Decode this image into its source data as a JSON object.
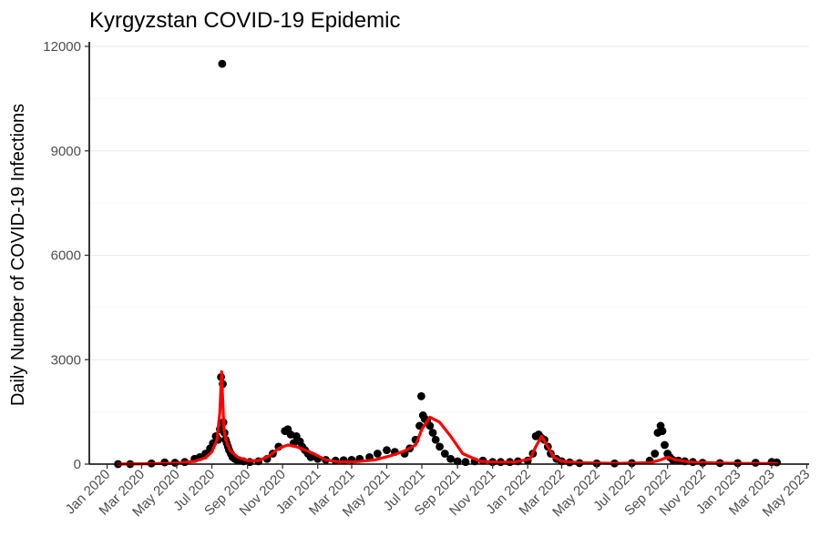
{
  "chart_data": {
    "type": "scatter",
    "title": "Kyrgyzstan COVID-19 Epidemic",
    "xlabel": "",
    "ylabel": "Daily Number of COVID-19 Infections",
    "xlim": [
      "2019-12-01",
      "2023-05-05"
    ],
    "ylim": [
      0,
      12000
    ],
    "y_ticks": [
      0,
      3000,
      6000,
      9000,
      12000
    ],
    "x_ticks": [
      {
        "date": "2020-01-01",
        "label": "Jan 2020"
      },
      {
        "date": "2020-03-01",
        "label": "Mar 2020"
      },
      {
        "date": "2020-05-01",
        "label": "May 2020"
      },
      {
        "date": "2020-07-01",
        "label": "Jul 2020"
      },
      {
        "date": "2020-09-01",
        "label": "Sep 2020"
      },
      {
        "date": "2020-11-01",
        "label": "Nov 2020"
      },
      {
        "date": "2021-01-01",
        "label": "Jan 2021"
      },
      {
        "date": "2021-03-01",
        "label": "Mar 2021"
      },
      {
        "date": "2021-05-01",
        "label": "May 2021"
      },
      {
        "date": "2021-07-01",
        "label": "Jul 2021"
      },
      {
        "date": "2021-09-01",
        "label": "Sep 2021"
      },
      {
        "date": "2021-11-01",
        "label": "Nov 2021"
      },
      {
        "date": "2022-01-01",
        "label": "Jan 2022"
      },
      {
        "date": "2022-03-01",
        "label": "Mar 2022"
      },
      {
        "date": "2022-05-01",
        "label": "May 2022"
      },
      {
        "date": "2022-07-01",
        "label": "Jul 2022"
      },
      {
        "date": "2022-09-01",
        "label": "Sep 2022"
      },
      {
        "date": "2022-11-01",
        "label": "Nov 2022"
      },
      {
        "date": "2023-01-01",
        "label": "Jan 2023"
      },
      {
        "date": "2023-03-01",
        "label": "Mar 2023"
      },
      {
        "date": "2023-05-01",
        "label": "May 2023"
      }
    ],
    "grid": true,
    "legend": "none",
    "series": [
      {
        "kind": "points",
        "color": "#000000",
        "x": [
          "2020-01-20",
          "2020-02-10",
          "2020-03-18",
          "2020-04-10",
          "2020-04-28",
          "2020-05-15",
          "2020-06-01",
          "2020-06-10",
          "2020-06-20",
          "2020-06-28",
          "2020-07-03",
          "2020-07-08",
          "2020-07-12",
          "2020-07-15",
          "2020-07-17",
          "2020-07-19",
          "2020-07-20",
          "2020-07-21",
          "2020-07-23",
          "2020-07-25",
          "2020-07-27",
          "2020-07-29",
          "2020-07-31",
          "2020-08-03",
          "2020-08-06",
          "2020-08-10",
          "2020-08-15",
          "2020-08-25",
          "2020-09-05",
          "2020-09-20",
          "2020-10-05",
          "2020-10-15",
          "2020-10-25",
          "2020-11-05",
          "2020-11-10",
          "2020-11-15",
          "2020-11-20",
          "2020-11-25",
          "2020-12-01",
          "2020-12-05",
          "2020-12-10",
          "2020-12-15",
          "2020-12-20",
          "2021-01-01",
          "2021-01-15",
          "2021-02-01",
          "2021-02-15",
          "2021-03-01",
          "2021-03-15",
          "2021-04-01",
          "2021-04-15",
          "2021-05-01",
          "2021-05-15",
          "2021-06-01",
          "2021-06-10",
          "2021-06-20",
          "2021-06-27",
          "2021-06-30",
          "2021-07-03",
          "2021-07-06",
          "2021-07-10",
          "2021-07-15",
          "2021-07-20",
          "2021-07-25",
          "2021-08-01",
          "2021-08-10",
          "2021-08-20",
          "2021-09-01",
          "2021-09-15",
          "2021-10-01",
          "2021-10-15",
          "2021-11-01",
          "2021-11-15",
          "2021-12-01",
          "2021-12-15",
          "2022-01-01",
          "2022-01-10",
          "2022-01-15",
          "2022-01-20",
          "2022-01-25",
          "2022-01-30",
          "2022-02-05",
          "2022-02-10",
          "2022-02-20",
          "2022-03-01",
          "2022-03-15",
          "2022-04-01",
          "2022-05-01",
          "2022-06-01",
          "2022-07-01",
          "2022-08-01",
          "2022-08-10",
          "2022-08-15",
          "2022-08-20",
          "2022-08-23",
          "2022-08-27",
          "2022-09-01",
          "2022-09-05",
          "2022-09-10",
          "2022-09-20",
          "2022-10-01",
          "2022-10-15",
          "2022-11-01",
          "2022-12-01",
          "2023-01-01",
          "2023-02-01",
          "2023-03-01",
          "2023-03-10"
        ],
        "y": [
          0,
          0,
          20,
          50,
          40,
          60,
          150,
          200,
          300,
          450,
          600,
          800,
          700,
          1000,
          2500,
          11500,
          2300,
          1200,
          900,
          700,
          600,
          500,
          400,
          300,
          200,
          150,
          100,
          80,
          60,
          80,
          150,
          300,
          500,
          950,
          1000,
          850,
          600,
          800,
          650,
          500,
          400,
          300,
          200,
          150,
          120,
          100,
          110,
          120,
          150,
          200,
          300,
          400,
          350,
          300,
          450,
          700,
          1100,
          1950,
          1400,
          1300,
          1250,
          1100,
          900,
          700,
          500,
          300,
          150,
          80,
          60,
          80,
          100,
          60,
          60,
          60,
          80,
          100,
          300,
          800,
          850,
          750,
          700,
          500,
          300,
          150,
          80,
          50,
          30,
          20,
          20,
          30,
          100,
          300,
          900,
          1100,
          950,
          550,
          300,
          200,
          120,
          100,
          80,
          60,
          40,
          30,
          30,
          40,
          60,
          50
        ]
      },
      {
        "kind": "line",
        "color": "#ff0000",
        "x": [
          "2020-01-20",
          "2020-03-15",
          "2020-05-01",
          "2020-06-01",
          "2020-06-20",
          "2020-07-01",
          "2020-07-10",
          "2020-07-15",
          "2020-07-18",
          "2020-07-20",
          "2020-07-22",
          "2020-07-25",
          "2020-08-01",
          "2020-08-15",
          "2020-09-01",
          "2020-09-20",
          "2020-10-10",
          "2020-10-25",
          "2020-11-10",
          "2020-11-25",
          "2020-12-10",
          "2020-12-25",
          "2021-01-15",
          "2021-02-10",
          "2021-03-10",
          "2021-04-10",
          "2021-05-10",
          "2021-06-01",
          "2021-06-20",
          "2021-07-01",
          "2021-07-15",
          "2021-08-01",
          "2021-08-20",
          "2021-09-10",
          "2021-10-10",
          "2021-11-10",
          "2021-12-10",
          "2022-01-05",
          "2022-01-15",
          "2022-01-25",
          "2022-02-05",
          "2022-02-15",
          "2022-03-01",
          "2022-04-01",
          "2022-06-01",
          "2022-08-01",
          "2022-08-20",
          "2022-09-01",
          "2022-09-15",
          "2022-10-15",
          "2023-01-01",
          "2023-03-10"
        ],
        "y": [
          0,
          10,
          30,
          80,
          180,
          350,
          700,
          1500,
          2650,
          1800,
          1000,
          700,
          400,
          200,
          100,
          100,
          250,
          450,
          550,
          500,
          400,
          300,
          120,
          60,
          70,
          120,
          250,
          380,
          550,
          1000,
          1350,
          1200,
          800,
          300,
          80,
          50,
          60,
          150,
          500,
          800,
          500,
          200,
          80,
          40,
          20,
          40,
          120,
          200,
          120,
          50,
          20,
          15
        ]
      }
    ]
  }
}
